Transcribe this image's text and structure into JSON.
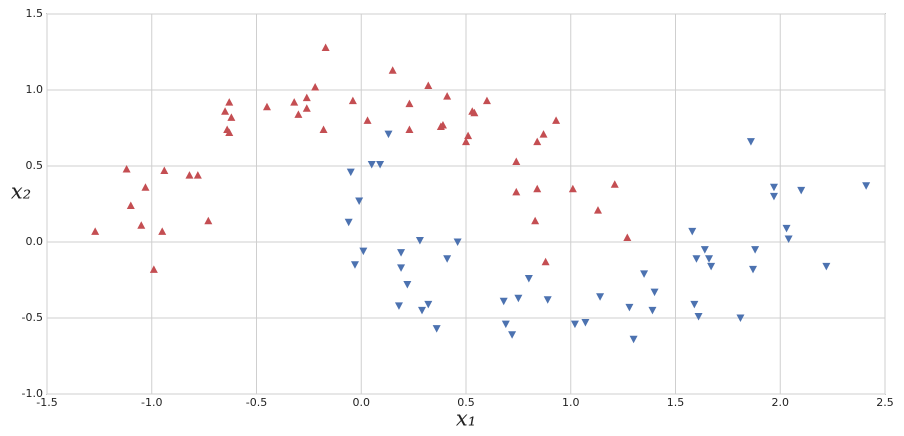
{
  "chart_data": {
    "type": "scatter",
    "xlabel": "x₁",
    "ylabel": "x₂",
    "xlim": [
      -1.5,
      2.5
    ],
    "ylim": [
      -1.0,
      1.5
    ],
    "xticks": [
      -1.5,
      {
        "value": -1,
        "label": "-1.0"
      },
      -0.5,
      {
        "value": 0,
        "label": "0.0"
      },
      0.5,
      {
        "value": 1,
        "label": "1.0"
      },
      1.5,
      {
        "value": 2,
        "label": "2.0"
      },
      2.5
    ],
    "yticks": [
      {
        "value": -1,
        "label": "-1.0"
      },
      -0.5,
      {
        "value": 0,
        "label": "0.0"
      },
      0.5,
      {
        "value": 1,
        "label": "1.0"
      },
      1.5
    ],
    "grid": true,
    "series": [
      {
        "color": "#c44e52",
        "marker": "triangle-up",
        "x": [
          -1.27,
          -1.12,
          -1.1,
          -1.03,
          -1.05,
          -0.94,
          -0.95,
          -0.99,
          -0.82,
          -0.78,
          -0.73,
          -0.63,
          -0.65,
          -0.64,
          -0.63,
          -0.62,
          -0.45,
          -0.32,
          -0.3,
          -0.26,
          -0.26,
          -0.22,
          -0.18,
          -0.17,
          -0.04,
          0.03,
          0.15,
          0.23,
          0.23,
          0.32,
          0.38,
          0.39,
          0.41,
          0.5,
          0.51,
          0.53,
          0.54,
          0.6,
          0.74,
          0.74,
          0.84,
          0.84,
          0.83,
          0.88,
          0.87,
          0.93,
          1.01,
          1.13,
          1.21,
          1.27
        ],
        "y": [
          0.07,
          0.48,
          0.24,
          0.36,
          0.11,
          0.47,
          0.07,
          -0.18,
          0.44,
          0.44,
          0.14,
          0.92,
          0.86,
          0.74,
          0.72,
          0.82,
          0.89,
          0.92,
          0.84,
          0.95,
          0.88,
          1.02,
          0.74,
          1.28,
          0.93,
          0.8,
          1.13,
          0.91,
          0.74,
          1.03,
          0.76,
          0.77,
          0.96,
          0.66,
          0.7,
          0.86,
          0.85,
          0.93,
          0.53,
          0.33,
          0.66,
          0.35,
          0.14,
          -0.13,
          0.71,
          0.8,
          0.35,
          0.21,
          0.38,
          0.03
        ]
      },
      {
        "color": "#4c72b0",
        "marker": "triangle-down",
        "x": [
          -0.05,
          -0.01,
          -0.06,
          -0.03,
          0.01,
          0.05,
          0.09,
          0.13,
          0.19,
          0.19,
          0.18,
          0.22,
          0.28,
          0.29,
          0.32,
          0.36,
          0.41,
          0.46,
          0.68,
          0.69,
          0.72,
          0.75,
          0.8,
          0.89,
          1.02,
          1.07,
          1.14,
          1.28,
          1.3,
          1.35,
          1.4,
          1.39,
          1.58,
          1.6,
          1.59,
          1.61,
          1.64,
          1.66,
          1.67,
          1.81,
          1.86,
          1.87,
          1.88,
          1.97,
          1.97,
          2.03,
          2.04,
          2.1,
          2.22,
          2.41
        ],
        "y": [
          0.46,
          0.27,
          0.13,
          -0.15,
          -0.06,
          0.51,
          0.51,
          0.71,
          -0.07,
          -0.17,
          -0.42,
          -0.28,
          0.01,
          -0.45,
          -0.41,
          -0.57,
          -0.11,
          0.0,
          -0.39,
          -0.54,
          -0.61,
          -0.37,
          -0.24,
          -0.38,
          -0.54,
          -0.53,
          -0.36,
          -0.43,
          -0.64,
          -0.21,
          -0.33,
          -0.45,
          0.07,
          -0.11,
          -0.41,
          -0.49,
          -0.05,
          -0.11,
          -0.16,
          -0.5,
          0.66,
          -0.18,
          -0.05,
          0.36,
          0.3,
          0.09,
          0.02,
          0.34,
          -0.16,
          0.37
        ]
      }
    ]
  }
}
